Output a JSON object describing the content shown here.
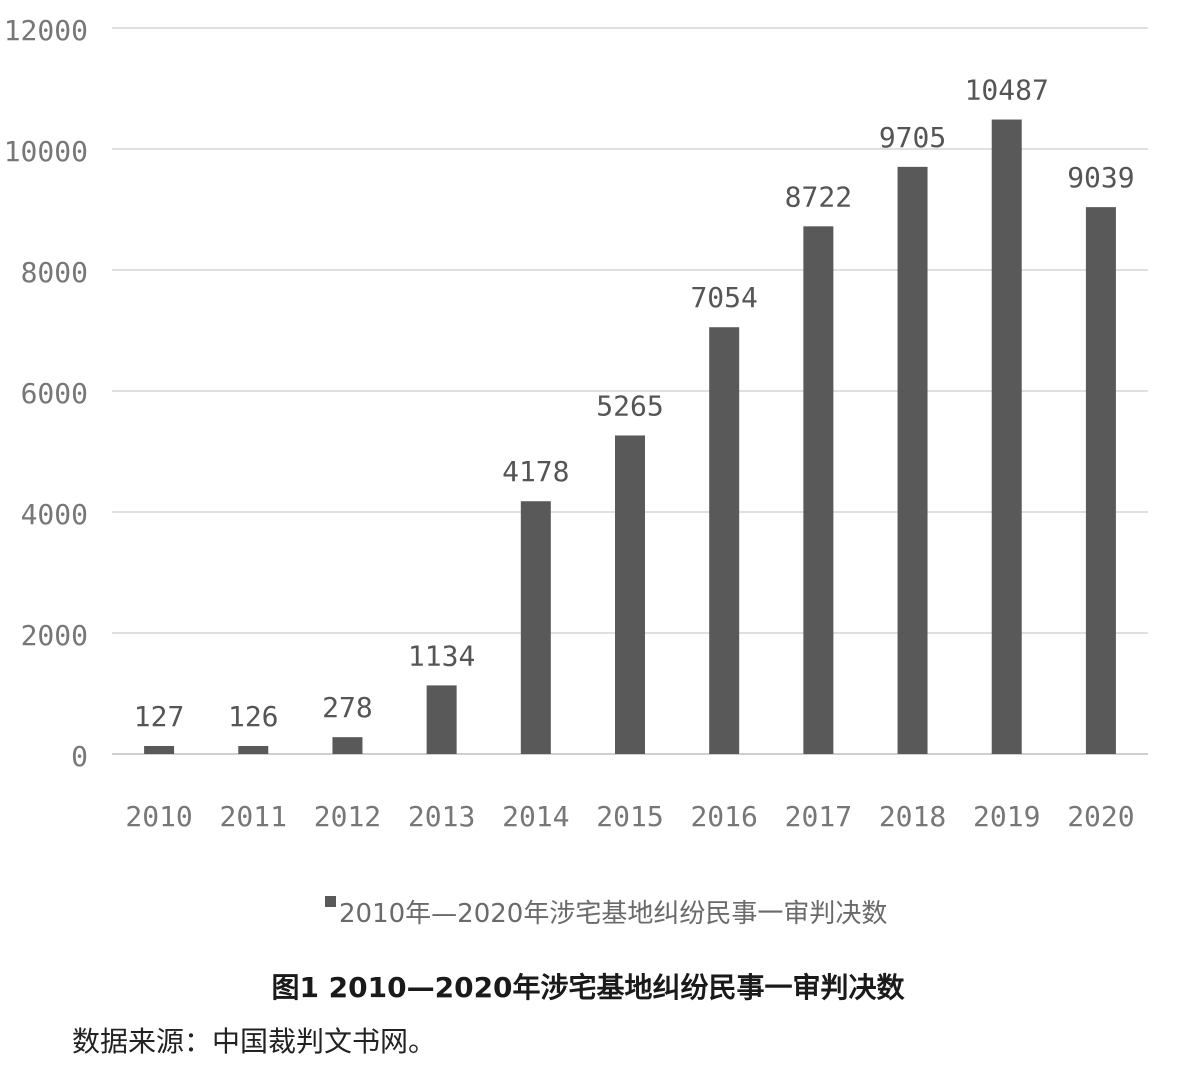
{
  "chart_data": {
    "type": "bar",
    "categories": [
      "2010",
      "2011",
      "2012",
      "2013",
      "2014",
      "2015",
      "2016",
      "2017",
      "2018",
      "2019",
      "2020"
    ],
    "series": [
      {
        "name": "2010年—2020年涉宅基地纠纷民事一审判决数",
        "values": [
          127,
          126,
          278,
          1134,
          4178,
          5265,
          7054,
          8722,
          9705,
          10487,
          9039
        ],
        "color": "#595959"
      }
    ],
    "ylim": [
      0,
      12000
    ],
    "yticks": [
      "0",
      "2000",
      "4000",
      "6000",
      "8000",
      "10000",
      "12000"
    ],
    "grid": true,
    "legend": "bottom"
  },
  "caption": "图1   2010—2020年涉宅基地纠纷民事一审判决数",
  "source": "数据来源：中国裁判文书网。"
}
